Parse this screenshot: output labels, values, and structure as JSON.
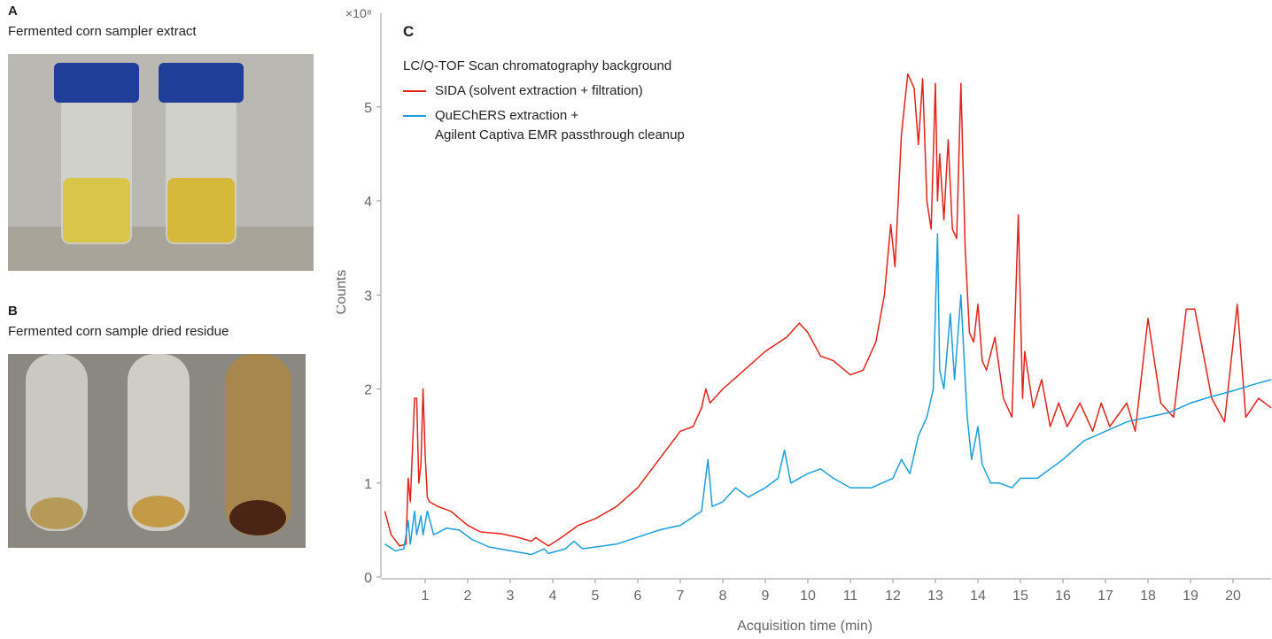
{
  "panels": {
    "a": {
      "label": "A",
      "caption": "Fermented corn sampler extract"
    },
    "b": {
      "label": "B",
      "caption": "Fermented corn sample dried residue"
    }
  },
  "chart_data": {
    "type": "line",
    "panel_label": "C",
    "multiplier_label": "×10⁸",
    "legend_title": "LC/Q-TOF Scan chromatography background",
    "x_label": "Acquisition time (min)",
    "y_label": "Counts",
    "xlim": [
      0,
      20.9
    ],
    "ylim": [
      0,
      6
    ],
    "xticks": [
      1,
      2,
      3,
      4,
      5,
      6,
      7,
      8,
      9,
      10,
      11,
      12,
      13,
      14,
      15,
      16,
      17,
      18,
      19,
      20
    ],
    "yticks": [
      0,
      1,
      2,
      3,
      4,
      5
    ],
    "series": [
      {
        "name": "SIDA (solvent extraction + filtration)",
        "color": "#e2231a",
        "x": [
          0.05,
          0.2,
          0.4,
          0.55,
          0.6,
          0.65,
          0.75,
          0.8,
          0.85,
          0.9,
          0.95,
          1.0,
          1.05,
          1.1,
          1.3,
          1.6,
          2.0,
          2.3,
          2.8,
          3.2,
          3.5,
          3.6,
          3.9,
          4.2,
          4.6,
          5.0,
          5.5,
          6.0,
          6.5,
          7.0,
          7.3,
          7.5,
          7.6,
          7.7,
          8.0,
          8.5,
          9.0,
          9.5,
          9.8,
          10.0,
          10.3,
          10.6,
          11.0,
          11.3,
          11.6,
          11.8,
          11.95,
          12.05,
          12.2,
          12.35,
          12.5,
          12.6,
          12.7,
          12.8,
          12.9,
          13.0,
          13.05,
          13.1,
          13.2,
          13.3,
          13.4,
          13.5,
          13.6,
          13.7,
          13.8,
          13.9,
          14.0,
          14.1,
          14.2,
          14.4,
          14.6,
          14.8,
          14.95,
          15.05,
          15.1,
          15.3,
          15.5,
          15.7,
          15.9,
          16.1,
          16.4,
          16.7,
          16.9,
          17.1,
          17.5,
          17.7,
          18.0,
          18.3,
          18.6,
          18.9,
          19.1,
          19.5,
          19.8,
          20.1,
          20.3,
          20.6,
          20.9
        ],
        "values": [
          0.7,
          0.45,
          0.33,
          0.35,
          1.05,
          0.8,
          1.9,
          1.9,
          1.0,
          1.2,
          2.0,
          1.3,
          0.85,
          0.8,
          0.75,
          0.7,
          0.55,
          0.48,
          0.46,
          0.42,
          0.38,
          0.42,
          0.33,
          0.42,
          0.55,
          0.62,
          0.75,
          0.95,
          1.25,
          1.55,
          1.6,
          1.8,
          2.0,
          1.85,
          2.0,
          2.2,
          2.4,
          2.55,
          2.7,
          2.6,
          2.35,
          2.3,
          2.15,
          2.2,
          2.5,
          3.0,
          3.75,
          3.3,
          4.7,
          5.35,
          5.2,
          4.6,
          5.3,
          4.0,
          3.7,
          5.25,
          4.0,
          4.5,
          3.8,
          4.65,
          3.7,
          3.6,
          5.25,
          3.5,
          2.6,
          2.5,
          2.9,
          2.3,
          2.2,
          2.55,
          1.9,
          1.7,
          3.85,
          1.9,
          2.4,
          1.8,
          2.1,
          1.6,
          1.85,
          1.6,
          1.85,
          1.55,
          1.85,
          1.6,
          1.85,
          1.55,
          2.75,
          1.85,
          1.7,
          2.85,
          2.85,
          1.9,
          1.65,
          2.9,
          1.7,
          1.9,
          1.8
        ]
      },
      {
        "name": "QuEChERS extraction +\nAgilent Captiva EMR passthrough cleanup",
        "color": "#1a9fdc",
        "x": [
          0.05,
          0.3,
          0.5,
          0.6,
          0.65,
          0.75,
          0.8,
          0.9,
          0.95,
          1.05,
          1.2,
          1.5,
          1.8,
          2.1,
          2.5,
          3.0,
          3.5,
          3.8,
          3.9,
          4.3,
          4.5,
          4.7,
          5.5,
          6.5,
          7.0,
          7.5,
          7.65,
          7.75,
          8.0,
          8.3,
          8.6,
          9.0,
          9.3,
          9.45,
          9.6,
          10.0,
          10.3,
          10.6,
          11.0,
          11.5,
          12.0,
          12.2,
          12.4,
          12.6,
          12.8,
          12.95,
          13.05,
          13.1,
          13.2,
          13.35,
          13.45,
          13.6,
          13.7,
          13.75,
          13.85,
          14.0,
          14.1,
          14.3,
          14.5,
          14.8,
          15.0,
          15.4,
          16.0,
          16.5,
          17.0,
          17.5,
          18.0,
          18.5,
          19.0,
          19.5,
          20.0,
          20.5,
          20.9
        ],
        "values": [
          0.35,
          0.28,
          0.3,
          0.6,
          0.35,
          0.7,
          0.45,
          0.65,
          0.45,
          0.7,
          0.45,
          0.52,
          0.5,
          0.4,
          0.32,
          0.28,
          0.24,
          0.3,
          0.25,
          0.3,
          0.38,
          0.3,
          0.35,
          0.5,
          0.55,
          0.7,
          1.25,
          0.75,
          0.8,
          0.95,
          0.85,
          0.95,
          1.05,
          1.35,
          1.0,
          1.1,
          1.15,
          1.05,
          0.95,
          0.95,
          1.05,
          1.25,
          1.1,
          1.5,
          1.7,
          2.0,
          3.65,
          2.2,
          2.0,
          2.8,
          2.1,
          3.0,
          2.1,
          1.7,
          1.25,
          1.6,
          1.2,
          1.0,
          1.0,
          0.95,
          1.05,
          1.05,
          1.25,
          1.45,
          1.55,
          1.65,
          1.7,
          1.75,
          1.85,
          1.92,
          1.98,
          2.05,
          2.1
        ]
      }
    ]
  }
}
